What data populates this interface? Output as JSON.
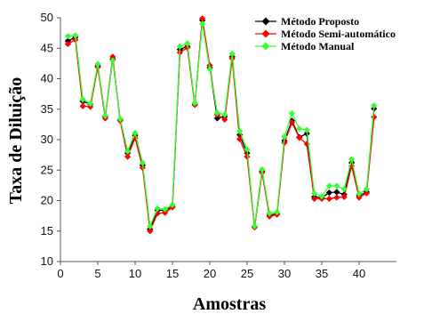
{
  "chart_data": {
    "type": "line",
    "title": "",
    "xlabel": "Amostras",
    "ylabel": "Taxa de Diluição",
    "xlim": [
      0,
      45
    ],
    "ylim": [
      10,
      50
    ],
    "xticks": [
      0,
      5,
      10,
      15,
      20,
      25,
      30,
      35,
      40
    ],
    "yticks": [
      10,
      15,
      20,
      25,
      30,
      35,
      40,
      45,
      50
    ],
    "grid": false,
    "legend_position": "top-right",
    "x": [
      1,
      2,
      3,
      4,
      5,
      6,
      7,
      8,
      9,
      10,
      11,
      12,
      13,
      14,
      15,
      16,
      17,
      18,
      19,
      20,
      21,
      22,
      23,
      24,
      25,
      26,
      27,
      28,
      29,
      30,
      31,
      32,
      33,
      34,
      35,
      36,
      37,
      38,
      39,
      40,
      41,
      42
    ],
    "series": [
      {
        "name": "Método Proposto",
        "color": "#000000",
        "values": [
          46.2,
          46.8,
          36.3,
          35.8,
          42.1,
          33.8,
          43.2,
          33.3,
          27.8,
          30.7,
          25.8,
          15.3,
          18.4,
          18.4,
          19.0,
          44.8,
          45.3,
          35.8,
          49.6,
          41.8,
          33.5,
          33.8,
          43.6,
          30.8,
          27.8,
          15.7,
          24.8,
          17.6,
          17.8,
          29.8,
          33.1,
          30.4,
          31.0,
          20.6,
          20.5,
          21.3,
          21.4,
          21.0,
          26.2,
          20.8,
          21.4,
          35.1
        ]
      },
      {
        "name": "Método Semi-automático",
        "color": "#ff0000",
        "values": [
          45.7,
          46.4,
          35.5,
          35.4,
          41.9,
          33.5,
          43.6,
          33.1,
          27.2,
          30.3,
          25.4,
          15.0,
          17.9,
          18.0,
          18.9,
          44.3,
          45.1,
          35.7,
          49.9,
          42.2,
          34.1,
          33.3,
          43.3,
          30.1,
          27.2,
          15.6,
          24.6,
          17.4,
          17.7,
          29.5,
          32.8,
          30.3,
          29.3,
          20.3,
          20.3,
          20.3,
          20.5,
          20.6,
          25.7,
          20.5,
          21.2,
          33.7
        ]
      },
      {
        "name": "Método Manual",
        "color": "#33ff33",
        "values": [
          47.0,
          47.1,
          36.6,
          35.9,
          42.4,
          33.9,
          43.0,
          33.4,
          28.1,
          31.1,
          26.2,
          15.8,
          18.7,
          18.6,
          19.3,
          45.3,
          45.8,
          36.0,
          49.0,
          41.6,
          34.4,
          34.1,
          44.1,
          31.4,
          28.4,
          15.8,
          25.1,
          17.9,
          18.1,
          30.5,
          34.3,
          31.8,
          31.6,
          21.2,
          20.7,
          22.4,
          22.4,
          21.9,
          26.8,
          21.1,
          21.9,
          35.6
        ]
      }
    ]
  }
}
